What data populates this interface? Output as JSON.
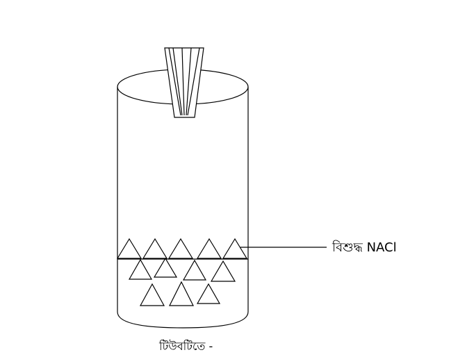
{
  "diagram": {
    "crystal_label": "বিশুদ্ধ NACl",
    "caption": "টিউবটিতে -"
  }
}
